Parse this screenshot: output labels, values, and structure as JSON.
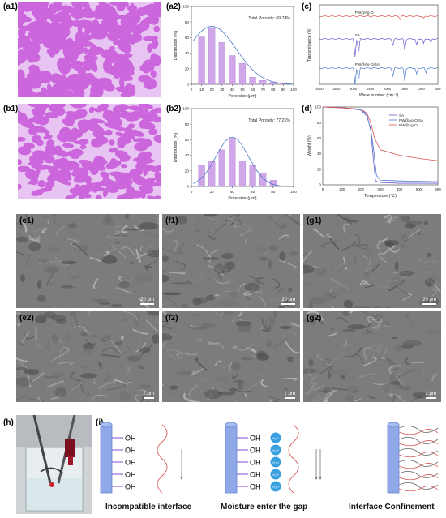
{
  "panel_labels": {
    "a1": "(a1)",
    "a2": "(a2)",
    "b1": "(b1)",
    "b2": "(b2)",
    "c": "(c)",
    "d": "(d)",
    "e1": "(e1)",
    "f1": "(f1)",
    "g1": "(g1)",
    "e2": "(e2)",
    "f2": "(f2)",
    "g2": "(g2)",
    "h": "(h)",
    "i": "(i)"
  },
  "scalebars": {
    "top": "20 μm",
    "bottom": "2 μm"
  },
  "colors": {
    "porous_pink": "#cc66dd",
    "bar_purple": "#cfa6e8",
    "curve_blue": "#4a78c8",
    "pwagO": "#d9534f",
    "sa": "#6a5acd",
    "composite": "#4a78c8"
  },
  "chart_data": [
    {
      "type": "bar",
      "panel": "a2",
      "annotation": "Total Porosity: 69.74%",
      "xlabel": "Pore size (μm)",
      "ylabel": "Distribution (%)",
      "x": [
        10,
        20,
        30,
        40,
        50,
        60,
        70,
        80,
        90
      ],
      "values": [
        61,
        73,
        54,
        37,
        27,
        9,
        5,
        3,
        2
      ],
      "xlim": [
        0,
        100
      ],
      "ylim": [
        0,
        100
      ],
      "xticks": [
        "0",
        "10",
        "20",
        "30",
        "40",
        "50",
        "60",
        "70",
        "80",
        "90",
        "100"
      ],
      "yticks": [
        "0",
        "20",
        "40",
        "60",
        "80",
        "100"
      ]
    },
    {
      "type": "bar",
      "panel": "b2",
      "annotation": "Total Porosity: 77.21%",
      "xlabel": "Pore size (μm)",
      "ylabel": "Distribution (%)",
      "x": [
        10,
        20,
        30,
        40,
        50,
        60,
        70,
        80
      ],
      "values": [
        27,
        32,
        47,
        62,
        33,
        28,
        17,
        8
      ],
      "xlim": [
        0,
        100
      ],
      "ylim": [
        0,
        100
      ],
      "xticks": [
        "0",
        "20",
        "40",
        "60",
        "80",
        "100"
      ],
      "yticks": [
        "0",
        "20",
        "40",
        "60",
        "80",
        "100"
      ]
    },
    {
      "type": "line",
      "panel": "c",
      "xlabel": "Wave number (cm⁻¹)",
      "ylabel": "Transmittance (%)",
      "xticks": [
        "4000",
        "3500",
        "3000",
        "2500",
        "2000",
        "1500",
        "1000",
        "500"
      ],
      "series": [
        {
          "name": "PW@Ag-O"
        },
        {
          "name": "SA"
        },
        {
          "name": "PW@Ag-O/SA"
        }
      ]
    },
    {
      "type": "line",
      "panel": "d",
      "xlabel": "Temperature (℃)",
      "ylabel": "Weight (%)",
      "xlim": [
        0,
        600
      ],
      "ylim": [
        0,
        100
      ],
      "xticks": [
        "0",
        "100",
        "200",
        "300",
        "400",
        "500",
        "600"
      ],
      "yticks": [
        "0",
        "20",
        "40",
        "60",
        "80",
        "100"
      ],
      "series": [
        {
          "name": "SA",
          "x": [
            0,
            100,
            200,
            230,
            250,
            265,
            275,
            300,
            400,
            600
          ],
          "y": [
            100,
            99,
            97,
            90,
            70,
            30,
            5,
            3,
            2,
            2
          ]
        },
        {
          "name": "PW@Ag-O/SA",
          "x": [
            0,
            100,
            200,
            230,
            250,
            265,
            280,
            300,
            400,
            600
          ],
          "y": [
            100,
            99,
            96,
            88,
            72,
            45,
            12,
            6,
            5,
            4
          ]
        },
        {
          "name": "PW@Ag-O",
          "x": [
            0,
            100,
            200,
            230,
            250,
            270,
            300,
            400,
            500,
            600
          ],
          "y": [
            100,
            99,
            97,
            92,
            80,
            60,
            45,
            38,
            34,
            31
          ]
        }
      ]
    }
  ],
  "schematic": {
    "oh": "OH",
    "water": "H₂O",
    "captions": [
      "Incompatible interface",
      "Moisture enter the gap",
      "Interface Confinement"
    ]
  }
}
